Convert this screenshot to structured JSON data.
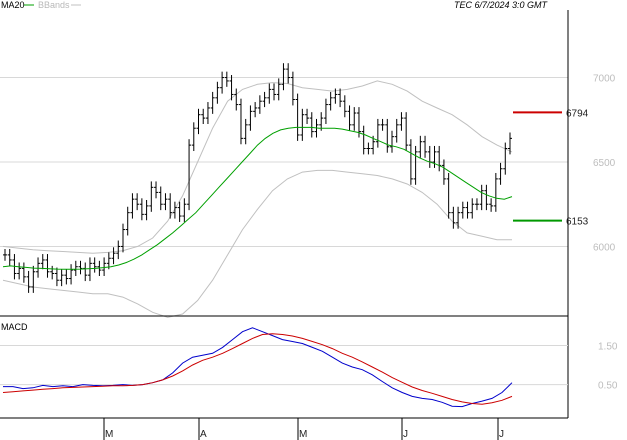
{
  "chart_data": [
    {
      "type": "line",
      "panel": "price",
      "legend": [
        {
          "name": "MA20",
          "color": "#000000"
        },
        {
          "name": "BBands",
          "color": "#c0c0c0"
        }
      ],
      "timestamp": "TEC 6/7/2024 3:0 GMT",
      "x_labels": [
        "M",
        "A",
        "M",
        "J",
        "J"
      ],
      "y_ticks": [
        6000,
        6500,
        7000
      ],
      "ylim": [
        5600,
        7400
      ],
      "grid": true,
      "levels": [
        {
          "value": 6794,
          "label": "6794",
          "color": "#cc0000"
        },
        {
          "value": 6153,
          "label": "6153",
          "color": "#009900"
        }
      ],
      "colors": {
        "price": "#000000",
        "ma20": "#00a000",
        "bbands": "#c0c0c0"
      },
      "series": [
        {
          "name": "Price",
          "values": [
            5950,
            5920,
            5840,
            5870,
            5820,
            5760,
            5850,
            5900,
            5920,
            5850,
            5840,
            5800,
            5830,
            5810,
            5860,
            5880,
            5870,
            5830,
            5900,
            5880,
            5860,
            5900,
            5930,
            5960,
            6000,
            6100,
            6200,
            6280,
            6250,
            6190,
            6240,
            6350,
            6320,
            6250,
            6280,
            6200,
            6230,
            6180,
            6250,
            6600,
            6700,
            6780,
            6760,
            6820,
            6880,
            6940,
            7000,
            6980,
            6900,
            6840,
            6640,
            6720,
            6800,
            6820,
            6860,
            6880,
            6930,
            6900,
            6960,
            7050,
            7000,
            6870,
            6660,
            6780,
            6760,
            6680,
            6720,
            6760,
            6840,
            6880,
            6900,
            6860,
            6800,
            6720,
            6790,
            6680,
            6580,
            6580,
            6620,
            6720,
            6720,
            6590,
            6650,
            6720,
            6760,
            6600,
            6400,
            6560,
            6620,
            6560,
            6500,
            6560,
            6480,
            6400,
            6200,
            6140,
            6200,
            6230,
            6200,
            6250,
            6250,
            6330,
            6250,
            6240,
            6400,
            6460,
            6580,
            6640
          ]
        },
        {
          "name": "MA20",
          "values": [
            5880,
            5885,
            5880,
            5876,
            5872,
            5870,
            5868,
            5866,
            5865,
            5865,
            5866,
            5868,
            5870,
            5875,
            5880,
            5890,
            5905,
            5925,
            5950,
            5980,
            6010,
            6045,
            6080,
            6120,
            6160,
            6200,
            6250,
            6300,
            6350,
            6400,
            6450,
            6500,
            6550,
            6600,
            6640,
            6670,
            6690,
            6700,
            6705,
            6705,
            6705,
            6700,
            6700,
            6700,
            6695,
            6685,
            6675,
            6660,
            6640,
            6620,
            6600,
            6590,
            6575,
            6550,
            6525,
            6505,
            6490,
            6470,
            6440,
            6410,
            6380,
            6350,
            6320,
            6300,
            6285,
            6280,
            6295
          ]
        },
        {
          "name": "BBands upper",
          "values": [
            6000,
            5990,
            5980,
            5975,
            5970,
            5965,
            5960,
            5965,
            5975,
            6000,
            6050,
            6150,
            6300,
            6500,
            6700,
            6860,
            6930,
            6960,
            6970,
            6965,
            6940,
            6930,
            6920,
            6930,
            6950,
            6980,
            6960,
            6920,
            6860,
            6820,
            6780,
            6720,
            6650,
            6600,
            6560
          ]
        },
        {
          "name": "BBands lower",
          "values": [
            5800,
            5780,
            5760,
            5750,
            5740,
            5730,
            5720,
            5720,
            5700,
            5660,
            5610,
            5580,
            5600,
            5680,
            5800,
            5950,
            6100,
            6220,
            6330,
            6400,
            6440,
            6450,
            6450,
            6440,
            6430,
            6420,
            6400,
            6370,
            6320,
            6250,
            6150,
            6080,
            6060,
            6040,
            6040
          ]
        }
      ]
    },
    {
      "type": "line",
      "panel": "macd",
      "title": "MACD",
      "y_ticks": [
        0.5,
        1.5
      ],
      "y_tick_labels": [
        "0.50",
        "1.50"
      ],
      "ylim": [
        -0.3,
        2.2
      ],
      "colors": {
        "macd": "#0000cc",
        "signal": "#cc0000"
      },
      "series": [
        {
          "name": "MACD",
          "values": [
            0.45,
            0.45,
            0.4,
            0.42,
            0.48,
            0.45,
            0.47,
            0.45,
            0.5,
            0.48,
            0.47,
            0.48,
            0.5,
            0.48,
            0.5,
            0.55,
            0.62,
            0.8,
            1.05,
            1.2,
            1.25,
            1.3,
            1.45,
            1.65,
            1.85,
            1.95,
            1.85,
            1.75,
            1.65,
            1.6,
            1.55,
            1.45,
            1.35,
            1.2,
            1.05,
            0.95,
            0.88,
            0.75,
            0.58,
            0.42,
            0.3,
            0.2,
            0.15,
            0.12,
            0.05,
            -0.05,
            -0.06,
            0.02,
            0.08,
            0.15,
            0.3,
            0.55
          ]
        },
        {
          "name": "Signal",
          "values": [
            0.3,
            0.32,
            0.34,
            0.36,
            0.38,
            0.4,
            0.42,
            0.43,
            0.44,
            0.45,
            0.46,
            0.47,
            0.47,
            0.48,
            0.5,
            0.55,
            0.62,
            0.72,
            0.85,
            1.0,
            1.12,
            1.2,
            1.3,
            1.42,
            1.55,
            1.68,
            1.78,
            1.8,
            1.78,
            1.74,
            1.68,
            1.6,
            1.52,
            1.42,
            1.3,
            1.2,
            1.08,
            0.95,
            0.82,
            0.68,
            0.56,
            0.44,
            0.35,
            0.28,
            0.2,
            0.12,
            0.06,
            0.02,
            0.0,
            0.04,
            0.1,
            0.2
          ]
        }
      ]
    }
  ]
}
